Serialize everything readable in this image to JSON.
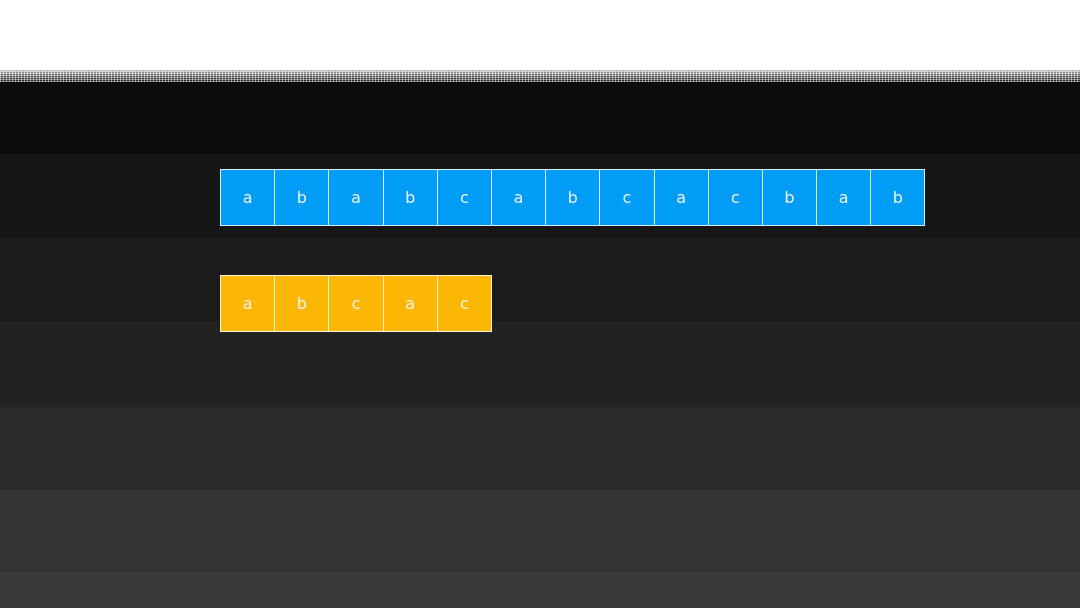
{
  "text_string": [
    "a",
    "b",
    "a",
    "b",
    "c",
    "a",
    "b",
    "c",
    "a",
    "c",
    "b",
    "a",
    "b"
  ],
  "pattern_string": [
    "a",
    "b",
    "c",
    "a",
    "c"
  ],
  "colors": {
    "text_cells": "#009cf5",
    "pattern_cells": "#fbb704",
    "background_top": "#ffffff",
    "background_dark": "#0d0d0d",
    "background_bottom": "#3a3a3a"
  }
}
